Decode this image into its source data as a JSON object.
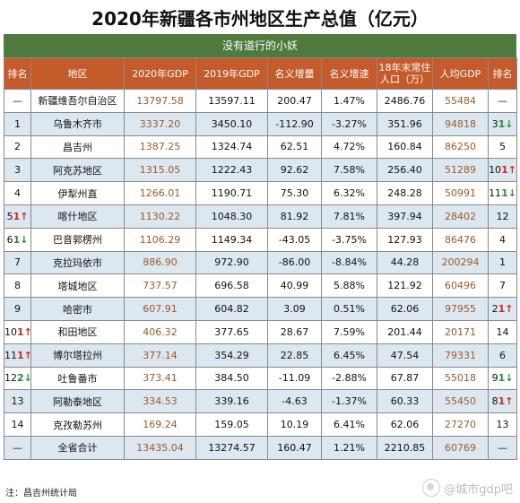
{
  "title": "2020年新疆各市州地区生产总值（亿元）",
  "subtitle": "没有道行的小妖",
  "headers": [
    "排名",
    "地区",
    "2020年GDP",
    "2019年GDP",
    "名义增量",
    "名义增速",
    "18年末常住人口（万）",
    "人均GDP",
    "排名"
  ],
  "rows": [
    {
      "rank": "—",
      "rank_change": "",
      "rank_dir": "",
      "region": "新疆维吾尔自治区",
      "gdp2020": "13797.58",
      "gdp2019": "13597.11",
      "increase": "200.47",
      "growth": "1.47%",
      "population": "2486.76",
      "per_capita": "55484",
      "pc_rank": "—",
      "pc_change": "",
      "pc_dir": ""
    },
    {
      "rank": "1",
      "rank_change": "",
      "rank_dir": "",
      "region": "乌鲁木齐市",
      "gdp2020": "3337.20",
      "gdp2019": "3450.10",
      "increase": "-112.90",
      "growth": "-3.27%",
      "population": "351.96",
      "per_capita": "94818",
      "pc_rank": "3",
      "pc_change": "1",
      "pc_dir": "down"
    },
    {
      "rank": "2",
      "rank_change": "",
      "rank_dir": "",
      "region": "昌吉州",
      "gdp2020": "1387.25",
      "gdp2019": "1324.74",
      "increase": "62.51",
      "growth": "4.72%",
      "population": "160.84",
      "per_capita": "86250",
      "pc_rank": "5",
      "pc_change": "",
      "pc_dir": ""
    },
    {
      "rank": "3",
      "rank_change": "",
      "rank_dir": "",
      "region": "阿克苏地区",
      "gdp2020": "1315.05",
      "gdp2019": "1222.43",
      "increase": "92.62",
      "growth": "7.58%",
      "population": "256.40",
      "per_capita": "51289",
      "pc_rank": "10",
      "pc_change": "1",
      "pc_dir": "up"
    },
    {
      "rank": "4",
      "rank_change": "",
      "rank_dir": "",
      "region": "伊犁州直",
      "gdp2020": "1266.01",
      "gdp2019": "1190.71",
      "increase": "75.30",
      "growth": "6.32%",
      "population": "248.28",
      "per_capita": "50991",
      "pc_rank": "11",
      "pc_change": "1",
      "pc_dir": "down"
    },
    {
      "rank": "5",
      "rank_change": "1",
      "rank_dir": "up",
      "region": "喀什地区",
      "gdp2020": "1130.22",
      "gdp2019": "1048.30",
      "increase": "81.92",
      "growth": "7.81%",
      "population": "397.94",
      "per_capita": "28402",
      "pc_rank": "12",
      "pc_change": "",
      "pc_dir": ""
    },
    {
      "rank": "6",
      "rank_change": "1",
      "rank_dir": "down",
      "region": "巴音郭楞州",
      "gdp2020": "1106.29",
      "gdp2019": "1149.34",
      "increase": "-43.05",
      "growth": "-3.75%",
      "population": "127.93",
      "per_capita": "86476",
      "pc_rank": "4",
      "pc_change": "",
      "pc_dir": ""
    },
    {
      "rank": "7",
      "rank_change": "",
      "rank_dir": "",
      "region": "克拉玛依市",
      "gdp2020": "886.90",
      "gdp2019": "972.90",
      "increase": "-86.00",
      "growth": "-8.84%",
      "population": "44.28",
      "per_capita": "200294",
      "pc_rank": "1",
      "pc_change": "",
      "pc_dir": ""
    },
    {
      "rank": "8",
      "rank_change": "",
      "rank_dir": "",
      "region": "塔城地区",
      "gdp2020": "737.57",
      "gdp2019": "696.58",
      "increase": "40.99",
      "growth": "5.88%",
      "population": "121.92",
      "per_capita": "60496",
      "pc_rank": "7",
      "pc_change": "",
      "pc_dir": ""
    },
    {
      "rank": "9",
      "rank_change": "",
      "rank_dir": "",
      "region": "哈密市",
      "gdp2020": "607.91",
      "gdp2019": "604.82",
      "increase": "3.09",
      "growth": "0.51%",
      "population": "62.06",
      "per_capita": "97955",
      "pc_rank": "2",
      "pc_change": "1",
      "pc_dir": "up"
    },
    {
      "rank": "10",
      "rank_change": "1",
      "rank_dir": "up",
      "region": "和田地区",
      "gdp2020": "406.32",
      "gdp2019": "377.65",
      "increase": "28.67",
      "growth": "7.59%",
      "population": "201.44",
      "per_capita": "20171",
      "pc_rank": "14",
      "pc_change": "",
      "pc_dir": ""
    },
    {
      "rank": "11",
      "rank_change": "1",
      "rank_dir": "up",
      "region": "博尔塔拉州",
      "gdp2020": "377.14",
      "gdp2019": "354.29",
      "increase": "22.85",
      "growth": "6.45%",
      "population": "47.54",
      "per_capita": "79331",
      "pc_rank": "6",
      "pc_change": "",
      "pc_dir": ""
    },
    {
      "rank": "12",
      "rank_change": "2",
      "rank_dir": "down",
      "region": "吐鲁番市",
      "gdp2020": "373.41",
      "gdp2019": "384.50",
      "increase": "-11.09",
      "growth": "-2.88%",
      "population": "67.87",
      "per_capita": "55018",
      "pc_rank": "9",
      "pc_change": "1",
      "pc_dir": "down"
    },
    {
      "rank": "13",
      "rank_change": "",
      "rank_dir": "",
      "region": "阿勒泰地区",
      "gdp2020": "334.53",
      "gdp2019": "339.16",
      "increase": "-4.63",
      "growth": "-1.37%",
      "population": "60.33",
      "per_capita": "55450",
      "pc_rank": "8",
      "pc_change": "1",
      "pc_dir": "up"
    },
    {
      "rank": "14",
      "rank_change": "",
      "rank_dir": "",
      "region": "克孜勒苏州",
      "gdp2020": "169.24",
      "gdp2019": "159.05",
      "increase": "10.19",
      "growth": "6.41%",
      "population": "62.06",
      "per_capita": "27270",
      "pc_rank": "13",
      "pc_change": "",
      "pc_dir": ""
    },
    {
      "rank": "—",
      "rank_change": "",
      "rank_dir": "",
      "region": "全省合计",
      "gdp2020": "13435.04",
      "gdp2019": "13274.57",
      "increase": "160.47",
      "growth": "1.21%",
      "population": "2210.85",
      "per_capita": "60769",
      "pc_rank": "—",
      "pc_change": "",
      "pc_dir": ""
    }
  ],
  "note": "注：昌吉州统计局",
  "watermark": "@城市gdp吧",
  "colors": {
    "header_bg": "#c55a2b",
    "subtitle_bg": "#4f7a3d",
    "stripe": "#dde7f0",
    "up": "#cc2b1d",
    "down": "#2e8b3a"
  }
}
